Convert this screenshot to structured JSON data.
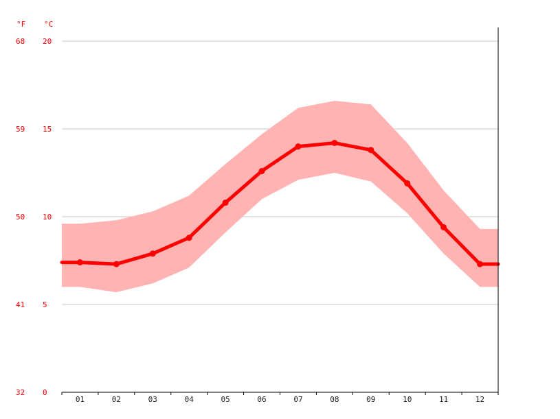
{
  "chart_data": {
    "type": "line",
    "title": "",
    "xlabel": "",
    "ylabel": "",
    "unit_labels": {
      "f": "°F",
      "c": "°C"
    },
    "categories": [
      "01",
      "02",
      "03",
      "04",
      "05",
      "06",
      "07",
      "08",
      "09",
      "10",
      "11",
      "12"
    ],
    "y_ticks_c": [
      "0",
      "5",
      "10",
      "15",
      "20"
    ],
    "y_ticks_f": [
      "32",
      "41",
      "50",
      "59",
      "68"
    ],
    "ylim_c": [
      0,
      20
    ],
    "grid": true,
    "series": [
      {
        "role": "mean",
        "values": [
          7.4,
          7.3,
          7.9,
          8.8,
          10.8,
          12.6,
          14.0,
          14.2,
          13.8,
          11.9,
          9.4,
          7.3
        ]
      },
      {
        "role": "max",
        "values": [
          9.6,
          9.8,
          10.3,
          11.2,
          13.0,
          14.7,
          16.2,
          16.6,
          16.4,
          14.2,
          11.5,
          9.3
        ]
      },
      {
        "role": "min",
        "values": [
          6.0,
          5.7,
          6.2,
          7.1,
          9.1,
          11.0,
          12.1,
          12.5,
          12.0,
          10.2,
          7.9,
          6.0
        ]
      }
    ],
    "colors": {
      "line": "#ff0000",
      "band": "#ffb3b3",
      "grid": "#c8c8c8",
      "axis": "#000000"
    }
  }
}
